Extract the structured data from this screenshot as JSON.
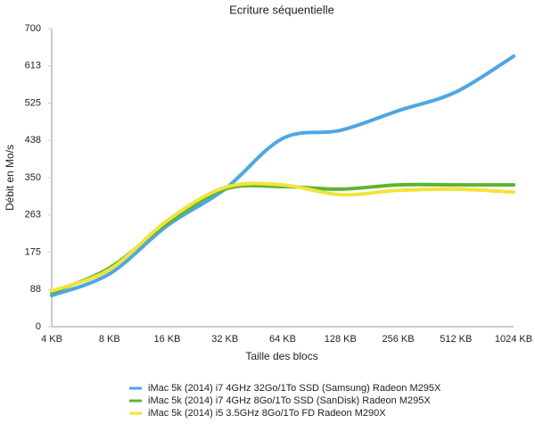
{
  "chart_data": {
    "type": "line",
    "title": "Ecriture séquentielle",
    "x_label": "Taille des blocs",
    "y_label": "Débit en Mo/s",
    "categories": [
      "4 KB",
      "8 KB",
      "16 KB",
      "32 KB",
      "64 KB",
      "128 KB",
      "256 KB",
      "512 KB",
      "1024 KB"
    ],
    "series": [
      {
        "name": "iMac 5k (2014) i7 4GHz 32Go/1To SSD (Samsung) Radeon M295X",
        "color": "#4ea6e6",
        "values": [
          73,
          124,
          237,
          323,
          442,
          461,
          507,
          551,
          635
        ]
      },
      {
        "name": "iMac 5k (2014) i7 4GHz 8Go/1To SSD (SanDisk) Radeon M295X",
        "color": "#5cb531",
        "values": [
          80,
          138,
          243,
          323,
          329,
          323,
          333,
          333,
          333
        ]
      },
      {
        "name": "iMac 5k (2014) i5 3.5GHz 8Go/1To FD Radeon M290X",
        "color": "#f0e43a",
        "values": [
          84,
          134,
          249,
          327,
          333,
          310,
          320,
          323,
          316
        ]
      }
    ],
    "ylim": [
      0,
      700
    ],
    "yticks": [
      0,
      {
        "value": 87.5,
        "label": "88"
      },
      175,
      {
        "value": 262.5,
        "label": "263"
      },
      350,
      {
        "value": 437.5,
        "label": "438"
      },
      525,
      {
        "value": 612.5,
        "label": "613"
      },
      700
    ],
    "grid": false
  }
}
